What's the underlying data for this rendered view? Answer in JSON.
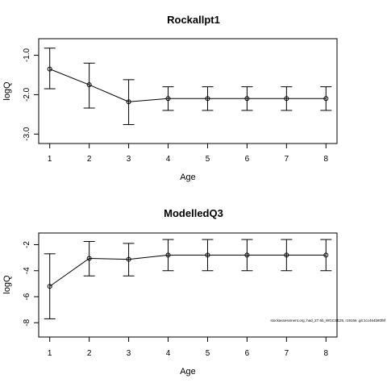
{
  "chart_data": [
    {
      "type": "line",
      "title": "Rockallpt1",
      "xlabel": "Age",
      "ylabel": "logQ",
      "x": [
        1,
        2,
        3,
        4,
        5,
        6,
        7,
        8
      ],
      "values": [
        -1.35,
        -1.75,
        -2.18,
        -2.1,
        -2.1,
        -2.1,
        -2.1,
        -2.1
      ],
      "lower": [
        -1.85,
        -2.34,
        -2.76,
        -2.4,
        -2.4,
        -2.4,
        -2.4,
        -2.4
      ],
      "upper": [
        -0.82,
        -1.2,
        -1.62,
        -1.8,
        -1.8,
        -1.8,
        -1.8,
        -1.8
      ],
      "xlim": [
        0.72,
        8.28
      ],
      "ylim": [
        -3.24,
        -0.58
      ],
      "xticks": [
        1,
        2,
        3,
        4,
        5,
        6,
        7,
        8
      ],
      "yticks": [
        -1.0,
        -2.0,
        -3.0
      ],
      "ytick_labels": [
        "-1.0",
        "-2.0",
        "-3.0"
      ],
      "error_bars": true,
      "grid": false
    },
    {
      "type": "line",
      "title": "ModelledQ3",
      "xlabel": "Age",
      "ylabel": "logQ",
      "x": [
        1,
        2,
        3,
        4,
        5,
        6,
        7,
        8
      ],
      "values": [
        -5.2,
        -3.05,
        -3.12,
        -2.8,
        -2.8,
        -2.8,
        -2.8,
        -2.8
      ],
      "lower": [
        -7.7,
        -4.4,
        -4.4,
        -4.0,
        -4.0,
        -4.0,
        -4.0,
        -4.0
      ],
      "upper": [
        -2.7,
        -1.75,
        -1.9,
        -1.6,
        -1.6,
        -1.6,
        -1.6,
        -1.6
      ],
      "xlim": [
        0.72,
        8.28
      ],
      "ylim": [
        -9.1,
        -1.1
      ],
      "xticks": [
        1,
        2,
        3,
        4,
        5,
        6,
        7,
        8
      ],
      "yticks": [
        -2,
        -4,
        -6,
        -8
      ],
      "ytick_labels": [
        "-2",
        "-4",
        "-6",
        "-8"
      ],
      "error_bars": true,
      "grid": false,
      "annotation": "stockassessment.org, had_27.6b_WGCSE25, r19156 .git:1cc464b80f8f"
    }
  ]
}
